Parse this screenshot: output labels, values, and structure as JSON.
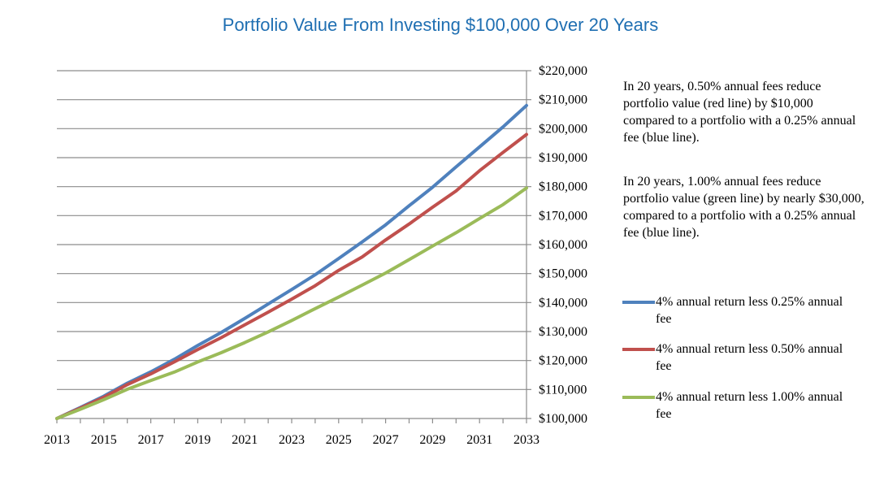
{
  "chart_data": {
    "type": "line",
    "title": "Portfolio Value From Investing $100,000 Over 20 Years",
    "xlabel": "",
    "ylabel": "",
    "x": [
      2013,
      2014,
      2015,
      2016,
      2017,
      2018,
      2019,
      2020,
      2021,
      2022,
      2023,
      2024,
      2025,
      2026,
      2027,
      2028,
      2029,
      2030,
      2031,
      2032,
      2033
    ],
    "x_tick_labels": [
      "2013",
      "2015",
      "2017",
      "2019",
      "2021",
      "2023",
      "2025",
      "2027",
      "2029",
      "2031",
      "2033"
    ],
    "ylim": [
      100000,
      220000
    ],
    "y_tick_values": [
      100000,
      110000,
      120000,
      130000,
      140000,
      150000,
      160000,
      170000,
      180000,
      190000,
      200000,
      210000,
      220000
    ],
    "y_tick_labels": [
      "$100,000",
      "$110,000",
      "$120,000",
      "$130,000",
      "$140,000",
      "$150,000",
      "$160,000",
      "$170,000",
      "$180,000",
      "$190,000",
      "$200,000",
      "$210,000",
      "$220,000"
    ],
    "y_axis_position": "right",
    "grid": true,
    "legend_position": "right",
    "series": [
      {
        "name": "4% annual return less 0.25% annual fee",
        "color": "#4f81bd",
        "values": [
          100000,
          103800,
          107700,
          112200,
          116100,
          120400,
          125200,
          129700,
          134500,
          139500,
          144500,
          149600,
          155200,
          160900,
          166800,
          173400,
          179800,
          186800,
          193700,
          200600,
          208000
        ]
      },
      {
        "name": "4% annual return less 0.50% annual fee",
        "color": "#c0504d",
        "values": [
          100000,
          103600,
          107300,
          111700,
          115400,
          119500,
          123800,
          127900,
          132300,
          136700,
          141200,
          145800,
          151100,
          155700,
          161600,
          167100,
          172900,
          178500,
          185500,
          191800,
          198000
        ]
      },
      {
        "name": "4% annual return less 1.00% annual fee",
        "color": "#9bbb59",
        "values": [
          100000,
          103200,
          106500,
          110100,
          113100,
          116000,
          119500,
          122700,
          126200,
          129900,
          133800,
          137900,
          141900,
          146000,
          150200,
          154800,
          159500,
          164100,
          169000,
          173800,
          179500
        ]
      }
    ]
  },
  "notes": [
    "In 20 years, 0.50% annual fees reduce portfolio value (red line) by $10,000 compared to a portfolio with a 0.25% annual fee (blue line).",
    "In 20 years, 1.00% annual fees reduce portfolio value (green line) by nearly $30,000, compared to a portfolio with a 0.25% annual fee (blue line)."
  ]
}
